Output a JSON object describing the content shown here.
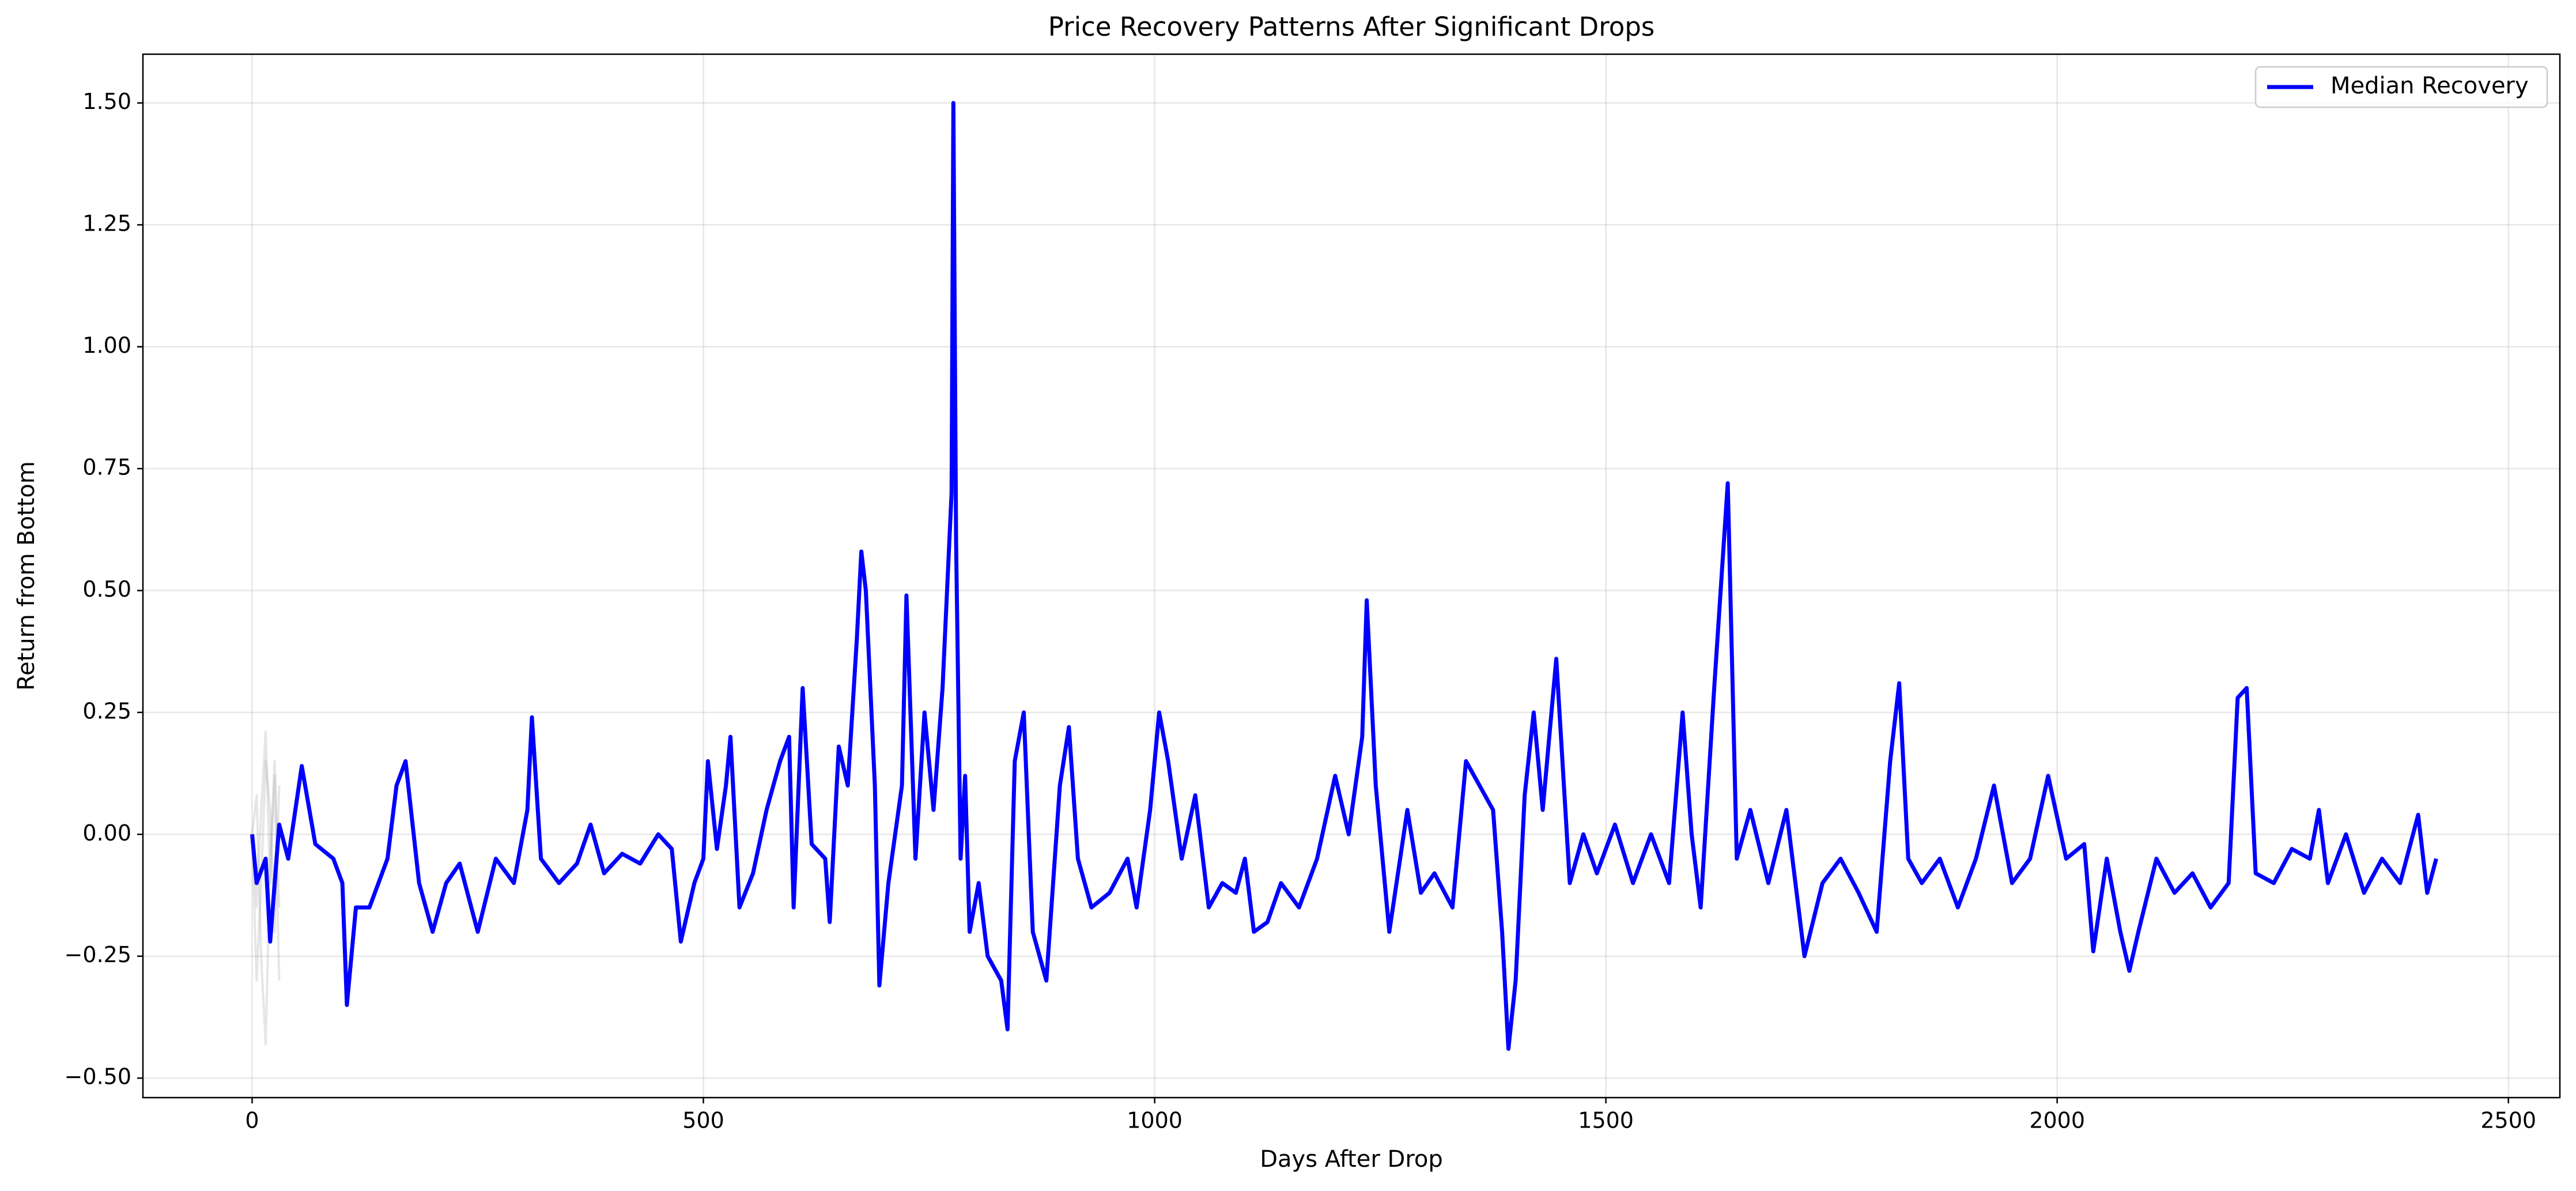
{
  "chart_data": {
    "type": "line",
    "title": "Price Recovery Patterns After Significant Drops",
    "xlabel": "Days After Drop",
    "ylabel": "Return from Bottom",
    "xlim": [
      -121,
      2557
    ],
    "ylim": [
      -0.54,
      1.6
    ],
    "xticks": [
      0,
      500,
      1000,
      1500,
      2000,
      2500
    ],
    "yticks": [
      {
        "value": -0.5,
        "label": "−0.50"
      },
      {
        "value": -0.25,
        "label": "−0.25"
      },
      {
        "value": 0,
        "label": "0.00"
      },
      {
        "value": 0.25,
        "label": "0.25"
      },
      {
        "value": 0.5,
        "label": "0.50"
      },
      {
        "value": 0.75,
        "label": "0.75"
      },
      {
        "value": 1,
        "label": "1.00"
      },
      {
        "value": 1.25,
        "label": "1.25"
      },
      {
        "value": 1.5,
        "label": "1.50"
      }
    ],
    "grid": true,
    "legend": "upper right",
    "series": [
      {
        "color": "#808080",
        "opacity": 0.2,
        "x": [
          0,
          5,
          10,
          15,
          20,
          25,
          30
        ],
        "values": [
          0,
          -0.15,
          0.05,
          0.21,
          -0.1,
          0.12,
          -0.3
        ]
      },
      {
        "color": "#808080",
        "opacity": 0.2,
        "x": [
          0,
          5,
          10,
          15,
          20,
          25,
          30
        ],
        "values": [
          0,
          0.08,
          -0.25,
          -0.43,
          -0.05,
          0.15,
          -0.15
        ]
      },
      {
        "color": "#808080",
        "opacity": 0.2,
        "x": [
          0,
          5,
          10,
          15,
          20,
          25,
          30
        ],
        "values": [
          0,
          -0.3,
          -0.1,
          0.15,
          0.05,
          -0.2,
          0.1
        ]
      },
      {
        "name": "Median Recovery",
        "color": "#0000ff",
        "x": [
          0,
          5,
          15,
          20,
          30,
          40,
          55,
          70,
          90,
          100,
          105,
          115,
          130,
          150,
          160,
          170,
          185,
          200,
          215,
          230,
          250,
          270,
          290,
          305,
          310,
          320,
          340,
          360,
          375,
          390,
          410,
          430,
          450,
          465,
          475,
          490,
          500,
          505,
          515,
          525,
          530,
          540,
          555,
          570,
          585,
          595,
          600,
          610,
          620,
          635,
          640,
          650,
          660,
          670,
          675,
          680,
          690,
          695,
          705,
          720,
          725,
          735,
          745,
          755,
          765,
          775,
          777,
          780,
          785,
          790,
          795,
          805,
          815,
          830,
          837,
          845,
          855,
          865,
          880,
          895,
          905,
          915,
          930,
          950,
          970,
          980,
          995,
          1005,
          1015,
          1030,
          1045,
          1060,
          1075,
          1090,
          1100,
          1110,
          1125,
          1140,
          1160,
          1180,
          1200,
          1215,
          1230,
          1235,
          1245,
          1260,
          1280,
          1295,
          1310,
          1330,
          1345,
          1360,
          1375,
          1385,
          1392,
          1400,
          1410,
          1420,
          1430,
          1445,
          1460,
          1475,
          1490,
          1510,
          1530,
          1550,
          1570,
          1585,
          1595,
          1605,
          1620,
          1635,
          1645,
          1660,
          1680,
          1700,
          1720,
          1740,
          1760,
          1780,
          1800,
          1815,
          1825,
          1835,
          1850,
          1870,
          1890,
          1910,
          1930,
          1950,
          1970,
          1990,
          2010,
          2030,
          2040,
          2055,
          2070,
          2080,
          2090,
          2110,
          2130,
          2150,
          2170,
          2190,
          2200,
          2210,
          2220,
          2240,
          2260,
          2280,
          2290,
          2300,
          2320,
          2340,
          2360,
          2380,
          2400,
          2410,
          2420
        ],
        "values": [
          0,
          -0.1,
          -0.05,
          -0.22,
          0.02,
          -0.05,
          0.14,
          -0.02,
          -0.05,
          -0.1,
          -0.35,
          -0.15,
          -0.15,
          -0.05,
          0.1,
          0.15,
          -0.1,
          -0.2,
          -0.1,
          -0.06,
          -0.2,
          -0.05,
          -0.1,
          0.05,
          0.24,
          -0.05,
          -0.1,
          -0.06,
          0.02,
          -0.08,
          -0.04,
          -0.06,
          0,
          -0.03,
          -0.22,
          -0.1,
          -0.05,
          0.15,
          -0.03,
          0.1,
          0.2,
          -0.15,
          -0.08,
          0.05,
          0.15,
          0.2,
          -0.15,
          0.3,
          -0.02,
          -0.05,
          -0.18,
          0.18,
          0.1,
          0.4,
          0.58,
          0.5,
          0.1,
          -0.31,
          -0.1,
          0.1,
          0.49,
          -0.05,
          0.25,
          0.05,
          0.3,
          0.7,
          1.5,
          0.6,
          -0.05,
          0.12,
          -0.2,
          -0.1,
          -0.25,
          -0.3,
          -0.4,
          0.15,
          0.25,
          -0.2,
          -0.3,
          0.1,
          0.22,
          -0.05,
          -0.15,
          -0.12,
          -0.05,
          -0.15,
          0.05,
          0.25,
          0.15,
          -0.05,
          0.08,
          -0.15,
          -0.1,
          -0.12,
          -0.05,
          -0.2,
          -0.18,
          -0.1,
          -0.15,
          -0.05,
          0.12,
          0,
          0.2,
          0.48,
          0.1,
          -0.2,
          0.05,
          -0.12,
          -0.08,
          -0.15,
          0.15,
          0.1,
          0.05,
          -0.2,
          -0.44,
          -0.3,
          0.08,
          0.25,
          0.05,
          0.36,
          -0.1,
          0,
          -0.08,
          0.02,
          -0.1,
          0,
          -0.1,
          0.25,
          0,
          -0.15,
          0.3,
          0.72,
          -0.05,
          0.05,
          -0.1,
          0.05,
          -0.25,
          -0.1,
          -0.05,
          -0.12,
          -0.2,
          0.15,
          0.31,
          -0.05,
          -0.1,
          -0.05,
          -0.15,
          -0.05,
          0.1,
          -0.1,
          -0.05,
          0.12,
          -0.05,
          -0.02,
          -0.24,
          -0.05,
          -0.2,
          -0.28,
          -0.2,
          -0.05,
          -0.12,
          -0.08,
          -0.15,
          -0.1,
          0.28,
          0.3,
          -0.08,
          -0.1,
          -0.03,
          -0.05,
          0.05,
          -0.1,
          0,
          -0.12,
          -0.05,
          -0.1,
          0.04,
          -0.12,
          -0.05
        ]
      }
    ]
  }
}
